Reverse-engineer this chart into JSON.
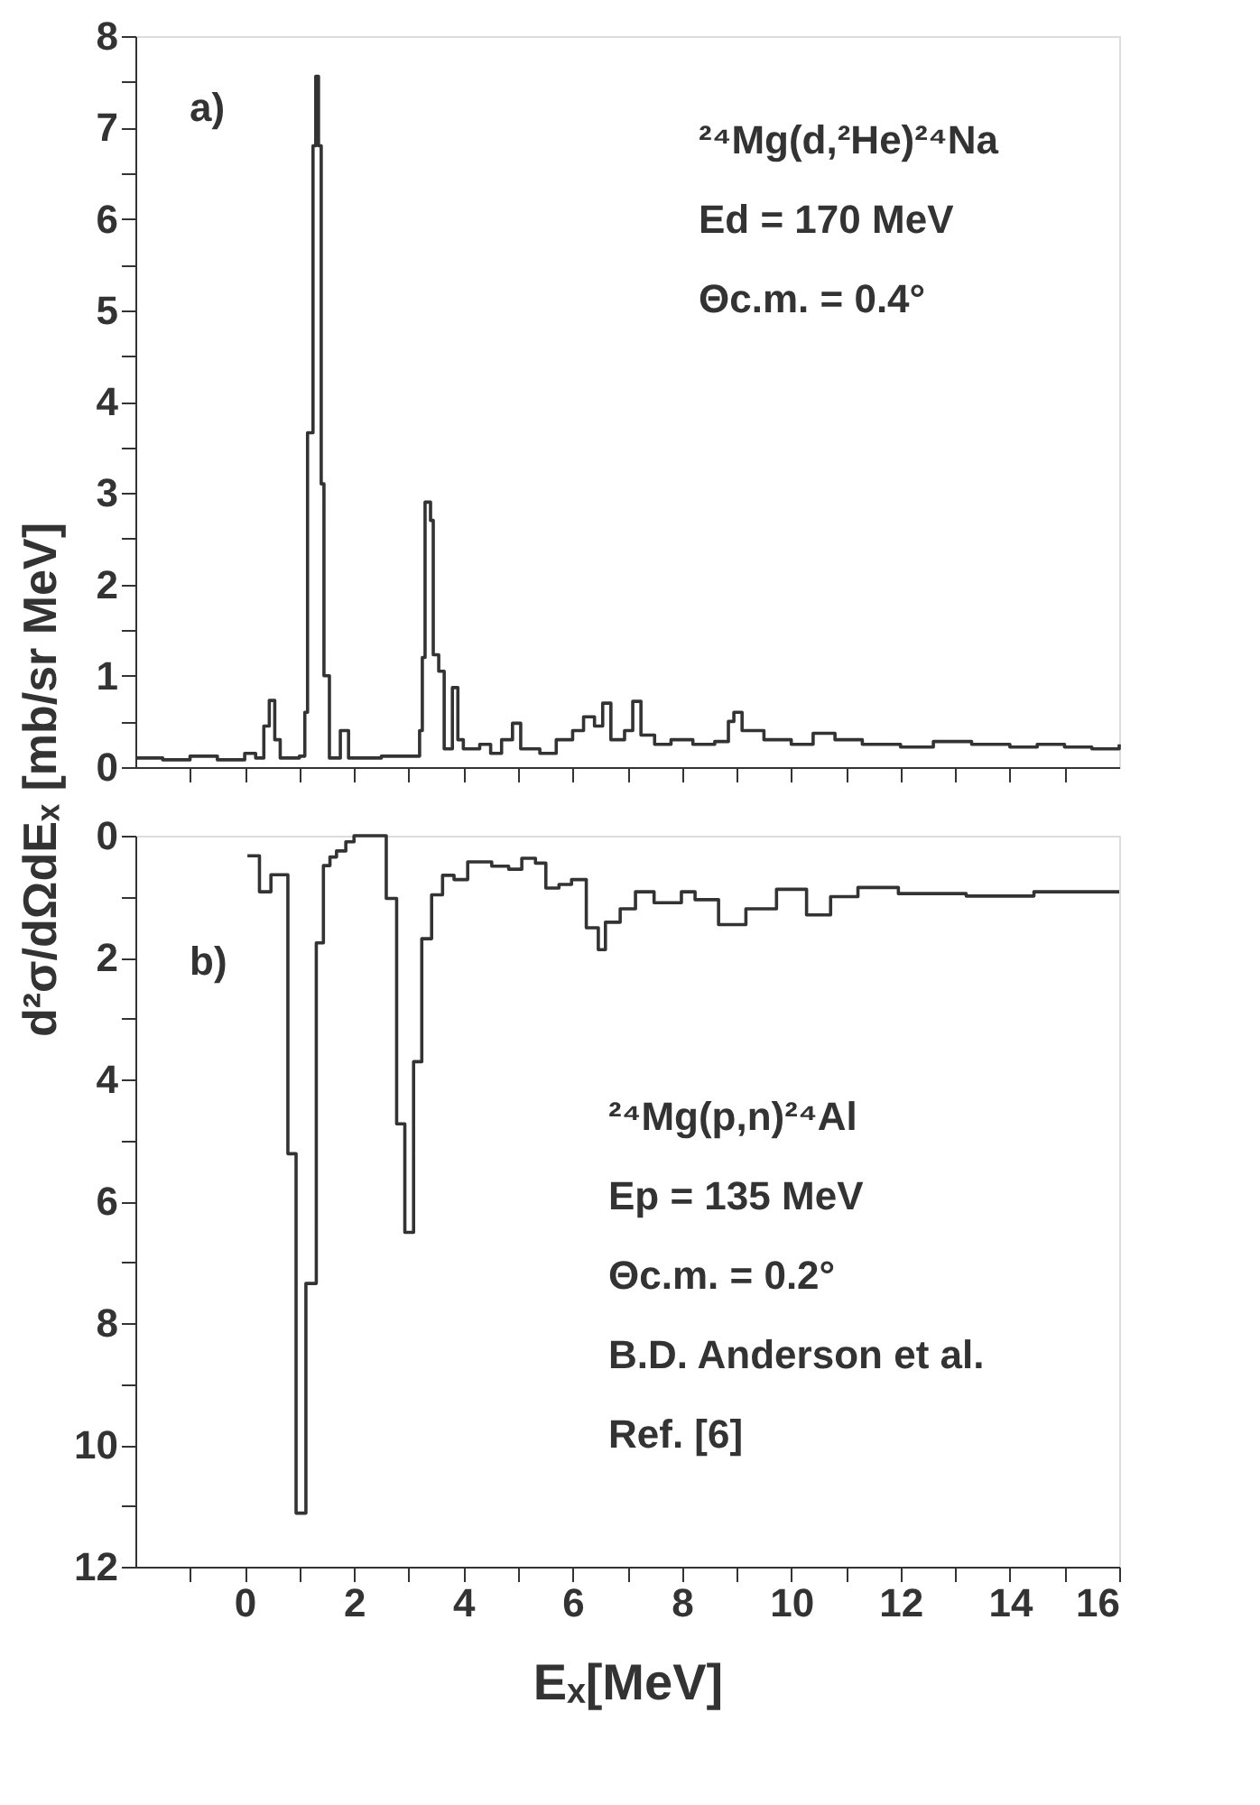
{
  "chart_data": [
    {
      "type": "step",
      "ylabel": "d²σ/dΩdEₓ [mb/sr MeV]",
      "xlim": [
        -2,
        16
      ],
      "ylim": [
        0,
        8
      ],
      "tick_labels": "y",
      "xticks": [
        {
          "value": -1,
          "label": null
        },
        {
          "value": 0,
          "label": null
        },
        {
          "value": 1,
          "label": null
        },
        {
          "value": 2,
          "label": null
        },
        {
          "value": 3,
          "label": null
        },
        {
          "value": 4,
          "label": null
        },
        {
          "value": 5,
          "label": null
        },
        {
          "value": 6,
          "label": null
        },
        {
          "value": 7,
          "label": null
        },
        {
          "value": 8,
          "label": null
        },
        {
          "value": 9,
          "label": null
        },
        {
          "value": 10,
          "label": null
        },
        {
          "value": 11,
          "label": null
        },
        {
          "value": 12,
          "label": null
        },
        {
          "value": 13,
          "label": null
        },
        {
          "value": 14,
          "label": null
        },
        {
          "value": 15,
          "label": null
        }
      ],
      "yticks": [
        0,
        {
          "value": 0.5,
          "label": null
        },
        1,
        {
          "value": 1.5,
          "label": null
        },
        2,
        {
          "value": 2.5,
          "label": null
        },
        3,
        {
          "value": 3.5,
          "label": null
        },
        4,
        {
          "value": 4.5,
          "label": null
        },
        5,
        {
          "value": 5.5,
          "label": null
        },
        6,
        {
          "value": 6.5,
          "label": null
        },
        7,
        {
          "value": 7.5,
          "label": null
        },
        8
      ],
      "annotations": [
        "a)",
        "²⁴Mg(d,²He)²⁴Na",
        "Ed = 170 MeV",
        "Θc.m. = 0.4°"
      ],
      "series": [
        {
          "color": "#333333",
          "x": [
            -2,
            -1.5,
            -1,
            -0.5,
            0,
            0.2,
            0.35,
            0.45,
            0.55,
            0.65,
            1.0,
            1.1,
            1.15,
            1.25,
            1.3,
            1.35,
            1.4,
            1.45,
            1.55,
            1.75,
            1.9,
            2.5,
            3.2,
            3.25,
            3.3,
            3.4,
            3.45,
            3.55,
            3.65,
            3.8,
            3.9,
            4.0,
            4.3,
            4.5,
            4.7,
            4.9,
            5.05,
            5.4,
            5.7,
            6.0,
            6.2,
            6.4,
            6.55,
            6.7,
            6.95,
            7.1,
            7.25,
            7.5,
            7.8,
            8.2,
            8.6,
            8.85,
            8.95,
            9.1,
            9.5,
            10.0,
            10.4,
            10.8,
            11.3,
            12,
            12.6,
            13.3,
            14,
            14.5,
            15,
            15.5,
            16
          ],
          "values": [
            0.1,
            0.08,
            0.12,
            0.08,
            0.15,
            0.1,
            0.45,
            0.73,
            0.3,
            0.1,
            0.12,
            0.6,
            3.66,
            6.8,
            7.56,
            6.8,
            3.1,
            1.0,
            0.1,
            0.4,
            0.1,
            0.12,
            0.4,
            1.2,
            2.9,
            2.7,
            1.23,
            1.05,
            0.2,
            0.87,
            0.3,
            0.2,
            0.25,
            0.15,
            0.3,
            0.48,
            0.2,
            0.15,
            0.3,
            0.4,
            0.55,
            0.45,
            0.7,
            0.3,
            0.4,
            0.72,
            0.35,
            0.25,
            0.3,
            0.25,
            0.28,
            0.5,
            0.6,
            0.4,
            0.3,
            0.25,
            0.37,
            0.3,
            0.25,
            0.22,
            0.28,
            0.25,
            0.22,
            0.25,
            0.22,
            0.2,
            0.25
          ]
        }
      ]
    },
    {
      "type": "step",
      "xlabel": "Eₓ[MeV]",
      "xlim": [
        -2,
        16
      ],
      "ylim": [
        12,
        0
      ],
      "xticks": [
        {
          "value": -1,
          "label": null
        },
        0,
        {
          "value": 1,
          "label": null
        },
        2,
        {
          "value": 3,
          "label": null
        },
        4,
        {
          "value": 5,
          "label": null
        },
        6,
        {
          "value": 7,
          "label": null
        },
        8,
        {
          "value": 9,
          "label": null
        },
        10,
        {
          "value": 11,
          "label": null
        },
        12,
        {
          "value": 13,
          "label": null
        },
        14,
        {
          "value": 15,
          "label": null
        },
        16
      ],
      "yticks": [
        0,
        {
          "value": 1,
          "label": null
        },
        2,
        {
          "value": 3,
          "label": null
        },
        4,
        {
          "value": 5,
          "label": null
        },
        6,
        {
          "value": 7,
          "label": null
        },
        8,
        {
          "value": 9,
          "label": null
        },
        10,
        {
          "value": 11,
          "label": null
        },
        12
      ],
      "annotations": [
        "b)",
        "²⁴Mg(p,n)²⁴Al",
        "Ep = 135 MeV",
        "Θc.m. = 0.2°",
        "B.D. Anderson et al.",
        "Ref. [6]"
      ],
      "series": [
        {
          "color": "#333333",
          "x": [
            0.05,
            0.27,
            0.48,
            0.79,
            0.94,
            1.12,
            1.31,
            1.44,
            1.56,
            1.68,
            1.85,
            2.0,
            2.59,
            2.78,
            2.93,
            3.09,
            3.24,
            3.42,
            3.62,
            3.83,
            4.08,
            4.52,
            4.83,
            5.07,
            5.32,
            5.51,
            5.75,
            5.98,
            6.25,
            6.47,
            6.6,
            6.87,
            7.15,
            7.49,
            7.99,
            8.24,
            8.67,
            9.17,
            9.73,
            10.28,
            10.72,
            11.22,
            11.96,
            13.2,
            14.44,
            16.0
          ],
          "values": [
            0.33,
            0.92,
            0.64,
            5.22,
            11.12,
            7.35,
            1.76,
            0.49,
            0.35,
            0.25,
            0.1,
            0,
            1.03,
            4.73,
            6.51,
            3.71,
            1.69,
            0.97,
            0.65,
            0.72,
            0.43,
            0.5,
            0.55,
            0.37,
            0.45,
            0.86,
            0.8,
            0.72,
            1.51,
            1.87,
            1.42,
            1.2,
            0.92,
            1.1,
            0.92,
            1.05,
            1.46,
            1.2,
            0.88,
            1.3,
            1.0,
            0.85,
            0.95,
            0.99,
            0.92,
            0.92
          ]
        }
      ]
    }
  ]
}
